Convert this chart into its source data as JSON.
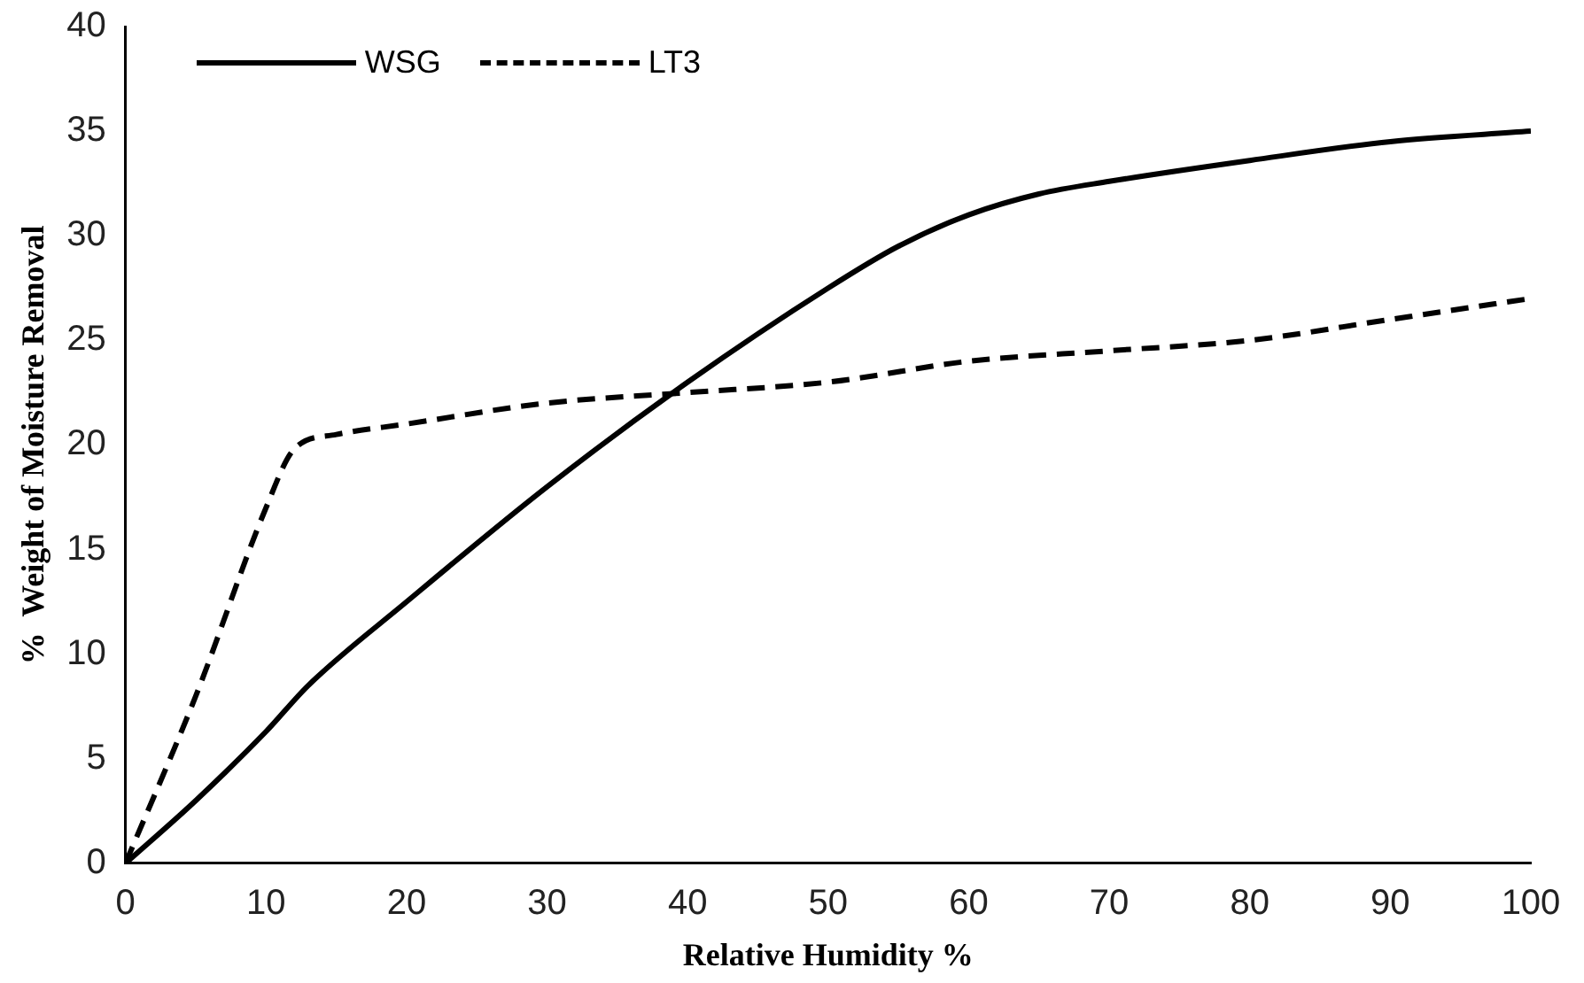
{
  "chart_data": {
    "type": "line",
    "xlabel": "Relative Humidity %",
    "ylabel": "%  Weight of Moisture Removal",
    "xlim": [
      0,
      100
    ],
    "xticks": [
      0,
      10,
      20,
      30,
      40,
      50,
      60,
      70,
      80,
      90,
      100
    ],
    "ylim": [
      0,
      40
    ],
    "yticks": [
      0,
      5,
      10,
      15,
      20,
      25,
      30,
      35,
      40
    ],
    "grid": false,
    "legend": "top left",
    "marker": "none",
    "series": [
      {
        "name": "WSG",
        "color": "#000000",
        "line_style": "solid",
        "x": [
          0,
          5,
          10,
          13,
          20,
          30,
          40,
          50,
          55,
          60,
          65,
          70,
          80,
          90,
          100
        ],
        "values": [
          0,
          3,
          6.3,
          8.5,
          12.5,
          18,
          23,
          27.5,
          29.5,
          31,
          32,
          32.6,
          33.6,
          34.5,
          35
        ]
      },
      {
        "name": "LT3",
        "color": "#000000",
        "line_style": "dashed",
        "x": [
          0,
          5,
          10,
          12,
          15,
          20,
          30,
          40,
          50,
          60,
          70,
          80,
          90,
          100
        ],
        "values": [
          0,
          8,
          17,
          19.8,
          20.5,
          21,
          22,
          22.5,
          23,
          24,
          24.5,
          25,
          26,
          27
        ]
      }
    ]
  }
}
